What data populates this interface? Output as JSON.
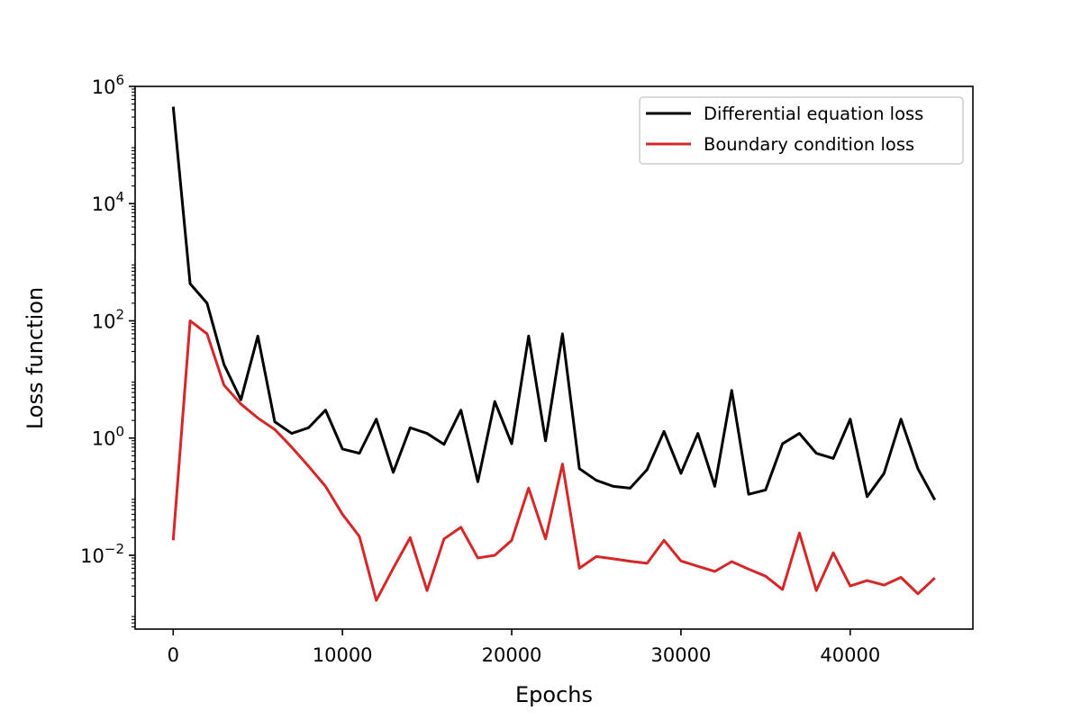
{
  "chart_data": {
    "type": "line",
    "xlabel": "Epochs",
    "ylabel": "Loss function",
    "yscale": "log",
    "xlim": [
      -2250,
      47250
    ],
    "ylim": [
      0.00055,
      1000000
    ],
    "x_ticks": [
      0,
      10000,
      20000,
      30000,
      40000
    ],
    "x_tick_labels": [
      "0",
      "10000",
      "20000",
      "30000",
      "40000"
    ],
    "y_ticks": [
      {
        "value": 1000000,
        "base": "10",
        "exp": "6"
      },
      {
        "value": 10000,
        "base": "10",
        "exp": "4"
      },
      {
        "value": 100,
        "base": "10",
        "exp": "2"
      },
      {
        "value": 1,
        "base": "10",
        "exp": "0"
      },
      {
        "value": 0.01,
        "base": "10",
        "exp": "−2"
      }
    ],
    "grid": false,
    "legend_position": "top-right",
    "x": [
      0,
      1000,
      2000,
      3000,
      4000,
      5000,
      6000,
      7000,
      8000,
      9000,
      10000,
      11000,
      12000,
      13000,
      14000,
      15000,
      16000,
      17000,
      18000,
      19000,
      20000,
      21000,
      22000,
      23000,
      24000,
      25000,
      26000,
      27000,
      28000,
      29000,
      30000,
      31000,
      32000,
      33000,
      34000,
      35000,
      36000,
      37000,
      38000,
      39000,
      40000,
      41000,
      42000,
      43000,
      44000,
      45000
    ],
    "series": [
      {
        "name": "Differential equation loss",
        "color": "#000000",
        "values": [
          450000,
          430,
          200,
          18,
          4.5,
          55,
          1.9,
          1.2,
          1.5,
          3,
          0.65,
          0.55,
          2.1,
          0.26,
          1.5,
          1.2,
          0.78,
          3,
          0.18,
          4.2,
          0.8,
          55,
          0.9,
          60,
          0.3,
          0.19,
          0.15,
          0.14,
          0.29,
          1.3,
          0.25,
          1.2,
          0.15,
          6.5,
          0.11,
          0.13,
          0.8,
          1.2,
          0.55,
          0.45,
          2.1,
          0.1,
          0.25,
          2.1,
          0.3,
          0.088
        ]
      },
      {
        "name": "Boundary condition loss",
        "color": "#d62728",
        "values": [
          0.018,
          100,
          60,
          8,
          3.8,
          2.2,
          1.4,
          0.7,
          0.33,
          0.15,
          0.05,
          0.021,
          0.0017,
          0.006,
          0.02,
          0.0025,
          0.019,
          0.03,
          0.009,
          0.01,
          0.018,
          0.14,
          0.019,
          0.36,
          0.006,
          0.0095,
          0.0087,
          0.0079,
          0.0073,
          0.018,
          0.008,
          0.0065,
          0.0053,
          0.0078,
          0.0058,
          0.0044,
          0.0026,
          0.024,
          0.0025,
          0.011,
          0.003,
          0.0037,
          0.0031,
          0.0042,
          0.0022,
          0.0041
        ]
      }
    ]
  }
}
